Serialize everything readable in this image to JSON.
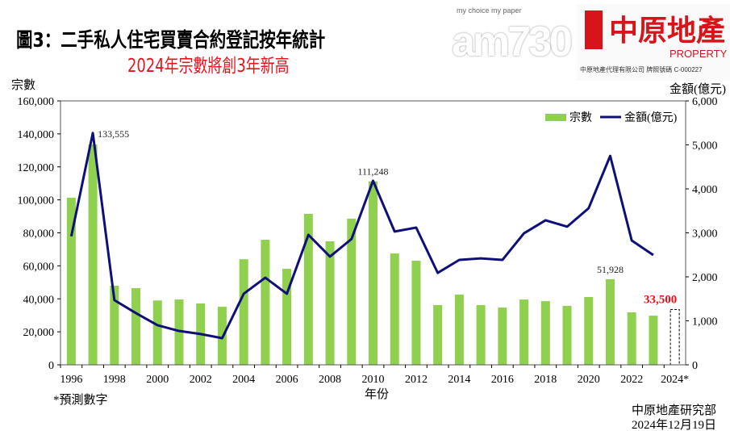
{
  "header": {
    "title": "圖3：二手私人住宅買賣合約登記按年統計",
    "subtitle": "2024年宗數將創3年新高"
  },
  "logo": {
    "brand": "中原地產",
    "english": "PROPERTY",
    "license": "中原地產代理有限公司 牌照號碼 C-000227",
    "watermark": "am730",
    "watermark_tag": "my choice my paper"
  },
  "footer": {
    "note": "*預測數字",
    "source": "中原地產研究部",
    "date": "2024年12月19日"
  },
  "chart_data": {
    "type": "bar+line",
    "xlabel": "年份",
    "ylabel_left": "宗數",
    "ylabel_right": "金額(億元)",
    "ylim_left": [
      0,
      160000
    ],
    "ylim_right": [
      0,
      6000
    ],
    "yticks_left": [
      "0",
      "20,000",
      "40,000",
      "60,000",
      "80,000",
      "100,000",
      "120,000",
      "140,000",
      "160,000"
    ],
    "yticks_right": [
      "0",
      "1,000",
      "2,000",
      "3,000",
      "4,000",
      "5,000",
      "6,000"
    ],
    "xticks": [
      "1996",
      "1998",
      "2000",
      "2002",
      "2004",
      "2006",
      "2008",
      "2010",
      "2012",
      "2014",
      "2016",
      "2018",
      "2020",
      "2022",
      "2024*"
    ],
    "legend_position": "top-right",
    "categories": [
      1996,
      1997,
      1998,
      1999,
      2000,
      2001,
      2002,
      2003,
      2004,
      2005,
      2006,
      2007,
      2008,
      2009,
      2010,
      2011,
      2012,
      2013,
      2014,
      2015,
      2016,
      2017,
      2018,
      2019,
      2020,
      2021,
      2022,
      2023,
      2024
    ],
    "series": [
      {
        "name": "宗數",
        "type": "bar",
        "axis": "left",
        "color": "#8fd14f",
        "values": [
          101300,
          133555,
          48000,
          46500,
          39000,
          39600,
          37200,
          35200,
          64000,
          75800,
          58200,
          91500,
          74900,
          88600,
          111248,
          67500,
          63100,
          36200,
          42600,
          36200,
          34700,
          39600,
          38600,
          35700,
          41100,
          51928,
          31800,
          29800,
          33500
        ],
        "estimated": [
          false,
          false,
          false,
          false,
          false,
          false,
          false,
          false,
          false,
          false,
          false,
          false,
          false,
          false,
          false,
          false,
          false,
          false,
          false,
          false,
          false,
          false,
          false,
          false,
          false,
          false,
          false,
          false,
          true
        ]
      },
      {
        "name": "金額(億元)",
        "type": "line",
        "axis": "right",
        "color": "#0f0f7a",
        "values": [
          2920,
          5270,
          1470,
          1175,
          900,
          770,
          700,
          605,
          1615,
          1980,
          1615,
          2955,
          2460,
          2860,
          4185,
          3030,
          3120,
          2090,
          2385,
          2420,
          2385,
          2990,
          3285,
          3140,
          3560,
          4750,
          2825,
          2495,
          null
        ]
      }
    ],
    "annotations": [
      {
        "year": 1997,
        "text": "133,555"
      },
      {
        "year": 2010,
        "text": "111,248"
      },
      {
        "year": 2021,
        "text": "51,928"
      },
      {
        "year": 2024,
        "text": "33,500",
        "color": "#e8131b"
      }
    ]
  }
}
